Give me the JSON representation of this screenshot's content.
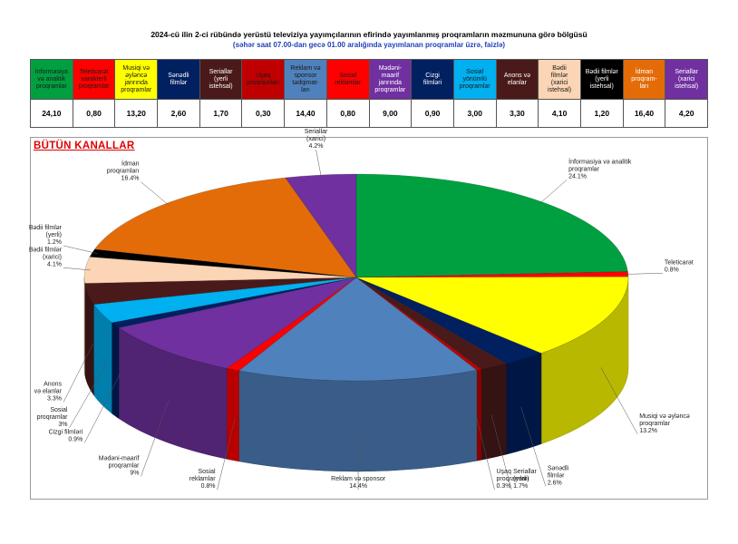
{
  "title": "2024-cü ilin 2-ci rübündə yerüstü televiziya yayımçılarının efirində yayımlanmış proqramların məzmununa görə bölgüsü",
  "subtitle": "(səhər saat 07.00-dan gecə 01.00 aralığında yayımlanan proqramlar üzrə, faizlə)",
  "chart_data": {
    "type": "pie",
    "title": "BÜTÜN KANALLAR",
    "categories": [
      {
        "name": "İnformasiya və analitik proqramlar",
        "value": 24.1,
        "display": "24,10",
        "color": "#00a040",
        "text_color": "#1a1a1a",
        "label": [
          "İnformasiya və analitik",
          "proqramlar",
          "24.1%"
        ]
      },
      {
        "name": "Teleticarət xarakterli proqramlar",
        "value": 0.8,
        "display": "0,80",
        "color": "#ff0000",
        "text_color": "#1a1a1a",
        "label": [
          "Teleticarət",
          "0.8%"
        ]
      },
      {
        "name": "Musiqi və əyləncə janrında proqramlar",
        "value": 13.2,
        "display": "13,20",
        "color": "#ffff00",
        "text_color": "#1a1a1a",
        "label": [
          "Musiqi və əyləncə",
          "proqramlar",
          "13.2%"
        ]
      },
      {
        "name": "Sənədli filmlər",
        "value": 2.6,
        "display": "2,60",
        "color": "#002060",
        "text_color": "#ffffff",
        "label": [
          "Sənədli",
          "filmlər",
          "2.6%"
        ]
      },
      {
        "name": "Seriallar (yerli istehsal)",
        "value": 1.7,
        "display": "1,70",
        "color": "#4a1a1a",
        "text_color": "#ffffff",
        "label": [
          "Seriallar",
          "(yerli)",
          "1.7%"
        ]
      },
      {
        "name": "Uşaq proqramları",
        "value": 0.3,
        "display": "0,30",
        "color": "#c00000",
        "text_color": "#1a1a1a",
        "label": [
          "Uşaq",
          "proqramları",
          "0.3%"
        ]
      },
      {
        "name": "Reklam və sponsor tədqimatları",
        "value": 14.4,
        "display": "14,40",
        "color": "#4f81bd",
        "text_color": "#1a1a1a",
        "label": [
          "Reklam və sponsor",
          "14.4%"
        ]
      },
      {
        "name": "Sosial reklamlar",
        "value": 0.8,
        "display": "0,80",
        "color": "#ff0000",
        "text_color": "#1a1a1a",
        "label": [
          "Sosial",
          "reklamlar",
          "0.8%"
        ]
      },
      {
        "name": "Mədəni-maarif janrında proqramlar",
        "value": 9.0,
        "display": "9,00",
        "color": "#7030a0",
        "text_color": "#ffffff",
        "label": [
          "Mədəni-maarif",
          "proqramlar",
          "9%"
        ]
      },
      {
        "name": "Cizgi filmləri",
        "value": 0.9,
        "display": "0,90",
        "color": "#002060",
        "text_color": "#ffffff",
        "label": [
          "Cizgi filmləri",
          "0.9%"
        ]
      },
      {
        "name": "Sosial yönümlü proqramlar",
        "value": 3.0,
        "display": "3,00",
        "color": "#00b0f0",
        "text_color": "#1a1a1a",
        "label": [
          "Sosial",
          "proqramlar",
          "3%"
        ]
      },
      {
        "name": "Anons və elanlar",
        "value": 3.3,
        "display": "3,30",
        "color": "#4a1a1a",
        "text_color": "#ffffff",
        "label": [
          "Anons",
          "və elanlar",
          "3.3%"
        ]
      },
      {
        "name": "Bədii filmlər (xarici istehsal)",
        "value": 4.1,
        "display": "4,10",
        "color": "#fbd5b5",
        "text_color": "#1a1a1a",
        "label": [
          "Bədii filmlər",
          "(xarici)",
          "4.1%"
        ]
      },
      {
        "name": "Bədii filmlər (yerli istehsal)",
        "value": 1.2,
        "display": "1,20",
        "color": "#000000",
        "text_color": "#ffffff",
        "label": [
          "Bədii filmlər",
          "(yerli)",
          "1.2%"
        ]
      },
      {
        "name": "İdman proqramları",
        "value": 16.4,
        "display": "16,40",
        "color": "#e36c09",
        "text_color": "#ffffff",
        "label": [
          "İdman",
          "proqramları",
          "16.4%"
        ]
      },
      {
        "name": "Seriallar (xarici istehsal)",
        "value": 4.2,
        "display": "4,20",
        "color": "#7030a0",
        "text_color": "#ffffff",
        "label": [
          "Seriallar",
          "(xarici)",
          "4.2%"
        ]
      }
    ],
    "legend_headers": [
      [
        "İnformasiya",
        "və analitik",
        "proqramlar"
      ],
      [
        "Teleticarət",
        "xarakterli",
        "proqramlar"
      ],
      [
        "Musiqi və",
        "əyləncə",
        "janrında",
        "proqramlar"
      ],
      [
        "Sənədli",
        "filmlər"
      ],
      [
        "Seriallar",
        "(yerli",
        "istehsal)"
      ],
      [
        "Uşaq",
        "proqramları"
      ],
      [
        "Reklam və",
        "sponsor",
        "tədqimat-",
        "ları"
      ],
      [
        "Sosial",
        "reklamlar"
      ],
      [
        "Mədəni-",
        "maarif",
        "janrında",
        "proqramlar"
      ],
      [
        "Cizgi",
        "filmləri"
      ],
      [
        "Sosial yönümlü",
        "proqramlar"
      ],
      [
        "Anons və",
        "elanlar"
      ],
      [
        "Bədii",
        "filmlər",
        "(xarici",
        "istehsal)"
      ],
      [
        "Bədii filmlər",
        "(yerli",
        "istehsal)"
      ],
      [
        "İdman",
        "proqram-",
        "ları"
      ],
      [
        "Seriallar",
        "(xarici",
        "istehsal)"
      ]
    ],
    "legend_placement": "top (table)",
    "three_d": true
  }
}
